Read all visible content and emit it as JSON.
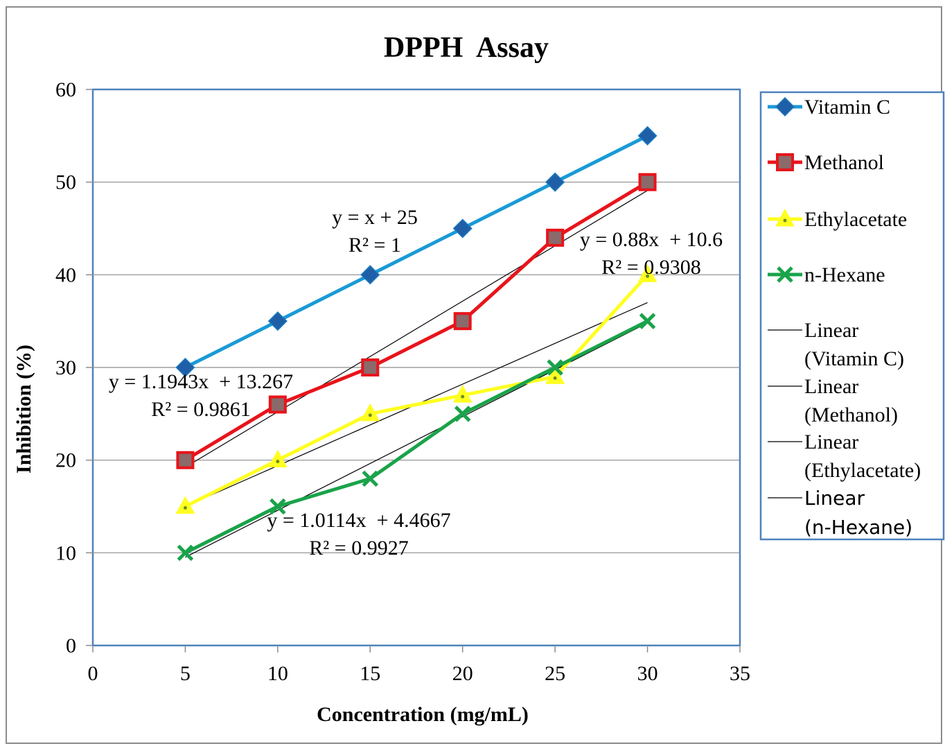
{
  "chart_data": {
    "type": "line",
    "title": "DPPH  Assay",
    "xlabel": "Concentration (mg/mL)",
    "ylabel": "Inhibition (%)",
    "xlim": [
      0,
      35
    ],
    "ylim": [
      0,
      60
    ],
    "x_ticks": [
      "0",
      "5",
      "10",
      "15",
      "20",
      "25",
      "30",
      "35"
    ],
    "y_ticks": [
      "0",
      "10",
      "20",
      "30",
      "40",
      "50",
      "60"
    ],
    "x_tick_values": [
      0,
      5,
      10,
      15,
      20,
      25,
      30,
      35
    ],
    "y_tick_values": [
      0,
      10,
      20,
      30,
      40,
      50,
      60
    ],
    "grid": "horizontal",
    "legend_position": "right",
    "x": [
      5,
      10,
      15,
      20,
      25,
      30
    ],
    "series": [
      {
        "name": "Vitamin C",
        "values": [
          30,
          35,
          40,
          45,
          50,
          55
        ],
        "color": "#1a9ad6",
        "marker": "diamond",
        "marker_color": "#1f5fa8"
      },
      {
        "name": "Methanol",
        "values": [
          20,
          26,
          30,
          35,
          44,
          50
        ],
        "color": "#e8141b",
        "marker": "square",
        "marker_color": "#8a6a6a"
      },
      {
        "name": "Ethylacetate",
        "values": [
          15,
          20,
          25,
          27,
          29,
          40
        ],
        "color": "#ffff20",
        "marker": "triangle",
        "marker_color": "#6b8e23"
      },
      {
        "name": "n-Hexane",
        "values": [
          10,
          15,
          18,
          25,
          30,
          35
        ],
        "color": "#1aa34a",
        "marker": "x",
        "marker_color": "#1aa34a"
      }
    ],
    "trendlines": [
      {
        "name_lines": [
          "Linear",
          "(Vitamin C)"
        ],
        "slope": 1,
        "intercept": 25,
        "x_range": [
          5,
          30
        ],
        "equation": "y = x + 25",
        "r2": "R² = 1"
      },
      {
        "name_lines": [
          "Linear",
          "(Methanol)"
        ],
        "slope": 1.1943,
        "intercept": 13.267,
        "x_range": [
          5,
          30
        ],
        "equation": "y = 1.1943x  + 13.267",
        "r2": "R² = 0.9861"
      },
      {
        "name_lines": [
          "Linear",
          "(Ethylacetate)"
        ],
        "slope": 0.88,
        "intercept": 10.6,
        "x_range": [
          5,
          30
        ],
        "equation": "y = 0.88x  + 10.6",
        "r2": "R² = 0.9308"
      },
      {
        "name_lines": [
          "Linear",
          "(n-Hexane)"
        ],
        "slope": 1.0114,
        "intercept": 4.4667,
        "x_range": [
          5,
          30
        ],
        "equation": "y = 1.0114x  + 4.4667",
        "r2": "R² = 0.9927"
      }
    ]
  }
}
